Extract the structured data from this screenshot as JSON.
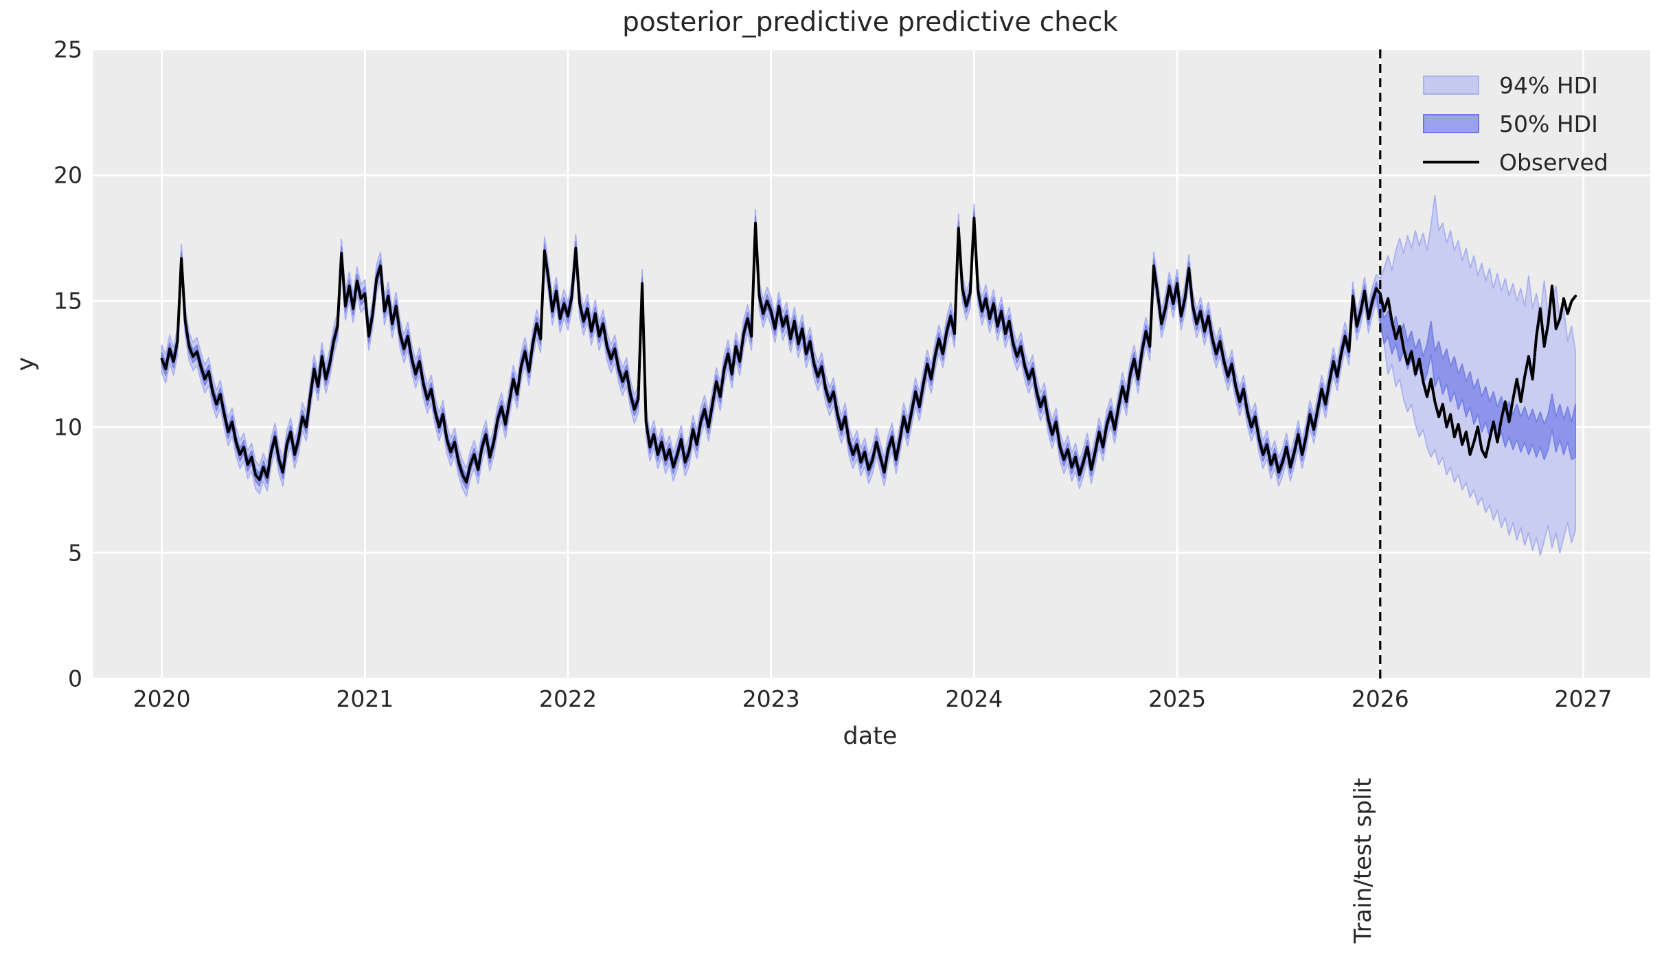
{
  "chart_data": {
    "type": "line",
    "title": "posterior_predictive predictive check",
    "xlabel": "date",
    "ylabel": "y",
    "xlim": [
      2019.6607,
      2027.3298
    ],
    "ylim": [
      0,
      25
    ],
    "grid": true,
    "x_ticks": [
      2020,
      2021,
      2022,
      2023,
      2024,
      2025,
      2026,
      2027
    ],
    "x_tick_labels": [
      "2020",
      "2021",
      "2022",
      "2023",
      "2024",
      "2025",
      "2026",
      "2027"
    ],
    "y_ticks": [
      0,
      5,
      10,
      15,
      20,
      25
    ],
    "y_tick_labels": [
      "0",
      "5",
      "10",
      "15",
      "20",
      "25"
    ],
    "legend": {
      "position": "upper right",
      "entries": [
        {
          "label": "94% HDI",
          "type": "patch",
          "fill": "#c6caef",
          "edge": "#aab1ed"
        },
        {
          "label": "50% HDI",
          "type": "patch",
          "fill": "#9aa2ec",
          "edge": "#6d77e2"
        },
        {
          "label": "Observed",
          "type": "line",
          "color": "#000000"
        }
      ]
    },
    "annotations": [
      {
        "text": "Train/test split",
        "x": 2026,
        "style": "vertical-dashed-line",
        "color": "#000000"
      }
    ],
    "x_start": 2020,
    "points_per_year": 52,
    "series": [
      {
        "name": "Observed",
        "color": "#000000",
        "values": [
          12.7,
          12.3,
          13.1,
          12.6,
          13.4,
          16.7,
          14.2,
          13.2,
          12.8,
          13.0,
          12.4,
          11.9,
          12.2,
          11.4,
          10.9,
          11.3,
          10.5,
          9.8,
          10.2,
          9.4,
          8.9,
          9.2,
          8.5,
          8.8,
          8.1,
          7.9,
          8.4,
          8.0,
          9.0,
          9.6,
          8.7,
          8.2,
          9.3,
          9.8,
          8.9,
          9.5,
          10.4,
          10.0,
          11.2,
          12.3,
          11.6,
          12.8,
          11.9,
          12.5,
          13.4,
          14.0,
          16.9,
          14.8,
          15.6,
          14.7,
          15.8,
          15.1,
          15.3,
          13.6,
          14.5,
          15.9,
          16.4,
          14.6,
          15.2,
          14.1,
          14.8,
          13.7,
          13.1,
          13.6,
          12.7,
          12.1,
          12.6,
          11.7,
          11.1,
          11.5,
          10.6,
          10.0,
          10.5,
          9.5,
          9.0,
          9.4,
          8.6,
          8.1,
          7.8,
          8.5,
          8.9,
          8.3,
          9.2,
          9.7,
          8.8,
          9.4,
          10.3,
          10.8,
          10.1,
          11.0,
          11.9,
          11.3,
          12.4,
          13.0,
          12.2,
          13.3,
          14.1,
          13.5,
          17.0,
          15.9,
          14.6,
          15.4,
          14.3,
          14.9,
          14.4,
          15.2,
          17.1,
          14.9,
          14.2,
          14.7,
          13.8,
          14.5,
          13.6,
          14.1,
          13.2,
          12.7,
          13.1,
          12.3,
          11.8,
          12.2,
          11.3,
          10.7,
          11.1,
          15.7,
          10.2,
          9.2,
          9.7,
          8.9,
          9.4,
          8.7,
          9.1,
          8.4,
          8.9,
          9.5,
          8.6,
          9.0,
          9.9,
          9.3,
          10.2,
          10.7,
          10.0,
          10.9,
          11.8,
          11.2,
          12.3,
          12.9,
          12.1,
          13.2,
          12.6,
          13.7,
          14.3,
          13.6,
          18.1,
          15.2,
          14.5,
          15.0,
          14.6,
          13.9,
          14.8,
          14.0,
          14.4,
          13.5,
          14.2,
          13.3,
          13.9,
          12.9,
          13.4,
          12.5,
          12.0,
          12.4,
          11.5,
          11.0,
          11.4,
          10.5,
          9.9,
          10.4,
          9.4,
          8.9,
          9.3,
          8.6,
          9.0,
          8.3,
          8.7,
          9.4,
          8.8,
          8.2,
          9.1,
          9.6,
          8.7,
          9.5,
          10.4,
          9.8,
          10.6,
          11.4,
          10.8,
          11.7,
          12.5,
          11.9,
          12.8,
          13.5,
          12.9,
          13.8,
          14.4,
          13.7,
          17.9,
          15.5,
          14.8,
          15.3,
          18.3,
          15.4,
          14.6,
          15.1,
          14.3,
          14.9,
          14.0,
          14.6,
          13.7,
          14.2,
          13.3,
          12.8,
          13.2,
          12.4,
          11.9,
          12.3,
          11.4,
          10.8,
          11.2,
          10.3,
          9.7,
          10.2,
          9.2,
          8.7,
          9.1,
          8.4,
          8.8,
          8.1,
          8.6,
          9.2,
          8.3,
          9.0,
          9.8,
          9.2,
          10.1,
          10.6,
          9.9,
          10.8,
          11.6,
          11.0,
          12.1,
          12.7,
          11.9,
          13.0,
          13.8,
          13.2,
          16.4,
          15.3,
          14.1,
          14.7,
          15.6,
          14.9,
          15.7,
          14.4,
          15.1,
          16.3,
          14.8,
          14.1,
          14.6,
          13.8,
          14.4,
          13.5,
          12.9,
          13.4,
          12.6,
          12.0,
          12.5,
          11.6,
          11.0,
          11.5,
          10.6,
          10.0,
          10.4,
          9.5,
          8.9,
          9.3,
          8.5,
          8.9,
          8.2,
          8.6,
          9.2,
          8.4,
          9.0,
          9.7,
          8.9,
          9.6,
          10.5,
          9.9,
          10.7,
          11.5,
          10.9,
          11.8,
          12.6,
          12.0,
          12.9,
          13.6,
          13.0,
          15.2,
          14.0,
          14.6,
          15.4,
          14.3,
          15.0,
          15.5,
          15.3,
          14.6,
          15.1,
          14.2,
          13.5,
          14.0,
          13.1,
          12.5,
          13.0,
          12.1,
          12.7,
          11.8,
          11.2,
          11.9,
          11.0,
          10.4,
          10.9,
          10.0,
          10.5,
          9.6,
          10.1,
          9.3,
          9.8,
          8.9,
          9.4,
          10.0,
          9.1,
          8.8,
          9.5,
          10.2,
          9.4,
          10.3,
          11.0,
          10.2,
          11.1,
          11.9,
          11.0,
          12.0,
          12.8,
          11.9,
          13.6,
          14.7,
          13.2,
          14.1,
          15.6,
          13.9,
          14.3,
          15.1,
          14.5,
          15.0,
          15.2
        ]
      }
    ],
    "hdi_in_sample": {
      "description": "posterior predictive HDI bands around observed, training period",
      "halfwidth_94": 0.55,
      "halfwidth_50": 0.25,
      "end_index": 312
    },
    "hdi_forecast": {
      "start_index": 312,
      "hi94": [
        15.9,
        16.3,
        16.8,
        16.2,
        17.0,
        17.5,
        16.9,
        17.6,
        17.1,
        17.8,
        17.2,
        17.7,
        17.0,
        18.0,
        19.2,
        17.8,
        18.1,
        17.3,
        17.8,
        17.0,
        17.4,
        16.6,
        17.1,
        16.3,
        16.8,
        16.0,
        16.5,
        15.8,
        16.3,
        15.5,
        16.1,
        15.4,
        15.9,
        15.2,
        15.7,
        15.0,
        15.5,
        14.8,
        16.0,
        14.7,
        15.3,
        14.5,
        15.8,
        14.4,
        15.0,
        15.6,
        14.2,
        14.7,
        13.4,
        14.0,
        13.0
      ],
      "lo94": [
        14.0,
        13.3,
        12.1,
        12.5,
        11.6,
        11.9,
        11.1,
        10.6,
        10.9,
        10.1,
        9.6,
        9.9,
        9.2,
        8.8,
        9.1,
        8.5,
        8.8,
        8.1,
        8.4,
        7.8,
        8.1,
        7.5,
        7.8,
        7.2,
        7.5,
        6.9,
        7.2,
        6.6,
        6.9,
        6.3,
        6.7,
        6.0,
        6.4,
        5.7,
        6.2,
        5.5,
        6.0,
        5.3,
        5.8,
        5.1,
        5.6,
        4.9,
        5.5,
        6.1,
        5.2,
        5.8,
        5.0,
        5.6,
        6.2,
        5.4,
        5.9
      ],
      "hi50": [
        15.0,
        14.3,
        14.6,
        13.9,
        14.4,
        13.7,
        14.1,
        13.4,
        13.8,
        13.1,
        13.5,
        12.8,
        13.3,
        14.2,
        13.0,
        13.4,
        12.7,
        13.1,
        12.4,
        12.8,
        12.1,
        12.5,
        11.8,
        12.2,
        11.5,
        11.9,
        11.2,
        11.6,
        11.0,
        11.4,
        10.8,
        11.2,
        10.6,
        11.0,
        10.5,
        10.9,
        10.4,
        10.8,
        10.3,
        10.7,
        10.2,
        10.6,
        10.1,
        10.5,
        11.3,
        10.4,
        10.9,
        10.3,
        10.8,
        10.2,
        10.9
      ],
      "lo50": [
        14.2,
        13.3,
        13.6,
        12.9,
        13.3,
        12.6,
        13.0,
        12.3,
        12.7,
        12.0,
        12.4,
        11.7,
        12.1,
        12.9,
        11.6,
        12.0,
        11.3,
        11.7,
        11.0,
        11.4,
        10.7,
        11.1,
        10.4,
        10.8,
        10.1,
        10.5,
        9.8,
        10.2,
        9.6,
        10.0,
        9.4,
        9.8,
        9.2,
        9.6,
        9.1,
        9.5,
        9.0,
        9.4,
        8.9,
        9.3,
        8.8,
        9.2,
        8.7,
        9.1,
        9.9,
        9.0,
        9.5,
        8.9,
        9.4,
        8.7,
        8.8
      ]
    },
    "colors": {
      "plot_background": "#ececed",
      "gridline": "#ffffff",
      "band94_fill": "#c9cdf1",
      "band94_edge": "#a9b0ee",
      "band50_fill": "#8c95e9",
      "band50_edge": "#7680e4",
      "observed_line": "#000000",
      "split_line": "#000000",
      "text": "#262626"
    }
  }
}
